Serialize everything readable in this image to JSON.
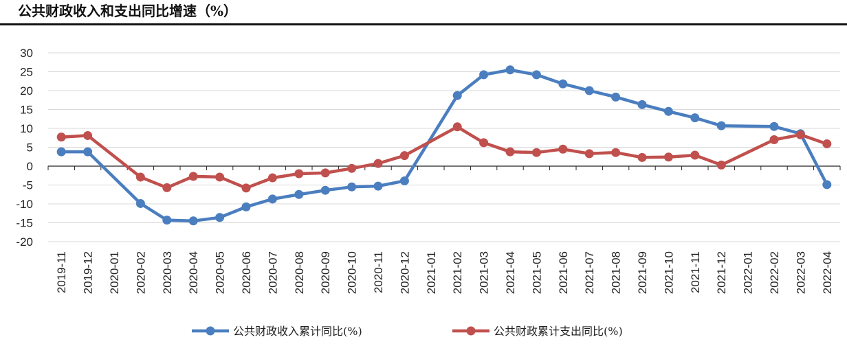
{
  "chart_data": {
    "type": "line",
    "title": "公共财政收入和支出同比增速（%）",
    "xlabel": "",
    "ylabel": "",
    "ylim": [
      -20,
      30
    ],
    "yticks": [
      30,
      25,
      20,
      15,
      10,
      5,
      0,
      -5,
      -10,
      -15,
      -20
    ],
    "grid": true,
    "legend_position": "bottom",
    "categories": [
      "2019-11",
      "2019-12",
      "2020-01",
      "2020-02",
      "2020-03",
      "2020-04",
      "2020-05",
      "2020-06",
      "2020-07",
      "2020-08",
      "2020-09",
      "2020-10",
      "2020-11",
      "2020-12",
      "2021-01",
      "2021-02",
      "2021-03",
      "2021-04",
      "2021-05",
      "2021-06",
      "2021-07",
      "2021-08",
      "2021-09",
      "2021-10",
      "2021-11",
      "2021-12",
      "2022-01",
      "2022-02",
      "2022-03",
      "2022-04"
    ],
    "series": [
      {
        "name": "公共财政收入累计同比(%)",
        "color": "#4a7ebf",
        "values": [
          3.8,
          3.8,
          null,
          -9.9,
          -14.3,
          -14.5,
          -13.6,
          -10.8,
          -8.7,
          -7.5,
          -6.4,
          -5.5,
          -5.3,
          -3.9,
          null,
          18.7,
          24.2,
          25.5,
          24.2,
          21.8,
          20.0,
          18.3,
          16.3,
          14.5,
          12.8,
          10.7,
          null,
          10.5,
          8.6,
          -4.9
        ]
      },
      {
        "name": "公共财政累计支出同比(%)",
        "color": "#c0504d",
        "values": [
          7.7,
          8.1,
          null,
          -2.9,
          -5.7,
          -2.7,
          -2.9,
          -5.8,
          -3.1,
          -2.0,
          -1.8,
          -0.6,
          0.7,
          2.8,
          null,
          10.4,
          6.2,
          3.8,
          3.6,
          4.5,
          3.3,
          3.6,
          2.3,
          2.4,
          2.9,
          0.3,
          null,
          7.0,
          8.3,
          5.9
        ]
      }
    ]
  }
}
